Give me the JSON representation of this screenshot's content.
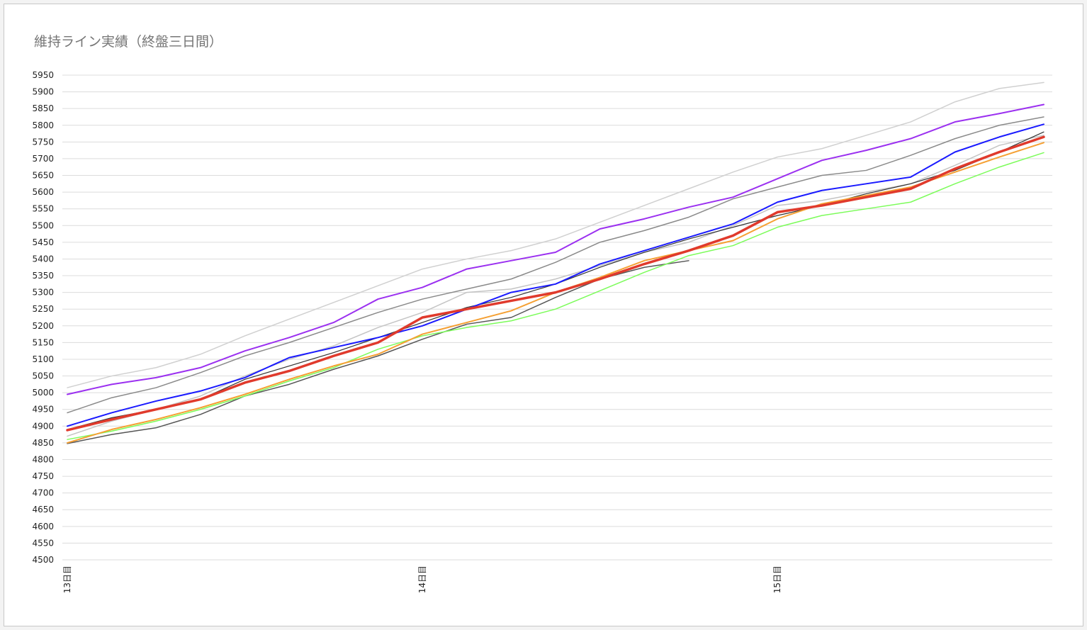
{
  "chart_data": {
    "type": "line",
    "title": "維持ライン実績（終盤三日間）",
    "categories": [
      "13日目",
      null,
      null,
      null,
      null,
      null,
      null,
      null,
      "14日目",
      null,
      null,
      null,
      null,
      null,
      null,
      null,
      "15日目",
      null,
      null,
      null,
      null,
      null,
      null
    ],
    "ylim": [
      4500,
      5950
    ],
    "yticks": [
      4500,
      4550,
      4600,
      4650,
      4700,
      4750,
      4800,
      4850,
      4900,
      4950,
      5000,
      5050,
      5100,
      5150,
      5200,
      5250,
      5300,
      5350,
      5400,
      5450,
      5500,
      5550,
      5600,
      5650,
      5700,
      5750,
      5800,
      5850,
      5900,
      5950
    ],
    "grid": true,
    "series": [
      {
        "color": "#d0d0d0",
        "width": 1.5,
        "values": [
          5015,
          5050,
          5075,
          5115,
          5170,
          5220,
          5270,
          5320,
          5370,
          5400,
          5425,
          5460,
          5510,
          5560,
          5610,
          5660,
          5705,
          5730,
          5770,
          5810,
          5870,
          5910,
          5928
        ]
      },
      {
        "color": "#c4c4c4",
        "width": 1.5,
        "values": [
          4870,
          4915,
          4950,
          4990,
          5050,
          5100,
          5140,
          5195,
          5240,
          5300,
          5310,
          5340,
          5380,
          5420,
          5450,
          5500,
          5560,
          5575,
          5600,
          5625,
          5680,
          5740,
          5770
        ]
      },
      {
        "color": "#8a8a8a",
        "width": 1.5,
        "values": [
          4940,
          4985,
          5015,
          5060,
          5110,
          5150,
          5195,
          5240,
          5280,
          5310,
          5340,
          5390,
          5450,
          5485,
          5525,
          5580,
          5615,
          5650,
          5665,
          5710,
          5760,
          5800,
          5825
        ]
      },
      {
        "color": "#555555",
        "width": 1.5,
        "values": [
          4848,
          4875,
          4895,
          4935,
          4990,
          5025,
          5070,
          5110,
          5160,
          5205,
          5225,
          5285,
          5340,
          5375,
          5395,
          null,
          null,
          null,
          null,
          null,
          null,
          null,
          null
        ]
      },
      {
        "color": "#333333",
        "width": 1.2,
        "values": [
          4890,
          4925,
          4950,
          4980,
          5040,
          5080,
          5120,
          5165,
          5210,
          5255,
          5285,
          5325,
          5375,
          5420,
          5460,
          5495,
          5530,
          5560,
          5595,
          5625,
          5665,
          5720,
          5780
        ]
      },
      {
        "color": "#7cfc5a",
        "width": 1.5,
        "values": [
          4860,
          4885,
          4915,
          4950,
          4990,
          5035,
          5075,
          5130,
          5170,
          5195,
          5215,
          5250,
          5305,
          5360,
          5410,
          5440,
          5495,
          5530,
          5550,
          5570,
          5625,
          5675,
          5718
        ]
      },
      {
        "color": "#f5a033",
        "width": 2,
        "values": [
          4850,
          4890,
          4920,
          4955,
          4995,
          5040,
          5080,
          5115,
          5175,
          5210,
          5245,
          5300,
          5345,
          5395,
          5425,
          5455,
          5520,
          5565,
          5590,
          5615,
          5660,
          5705,
          5748
        ]
      },
      {
        "color": "#1a1aff",
        "width": 2,
        "values": [
          4900,
          4940,
          4975,
          5005,
          5045,
          5105,
          5135,
          5165,
          5200,
          5250,
          5300,
          5325,
          5385,
          5425,
          5465,
          5505,
          5570,
          5605,
          5625,
          5645,
          5720,
          5765,
          5803
        ]
      },
      {
        "color": "#9b30f0",
        "width": 2,
        "values": [
          4995,
          5025,
          5045,
          5075,
          5125,
          5165,
          5210,
          5280,
          5315,
          5370,
          5395,
          5420,
          5490,
          5520,
          5555,
          5585,
          5640,
          5695,
          5725,
          5760,
          5810,
          5835,
          5862
        ]
      },
      {
        "color": "#e03a2c",
        "width": 3.5,
        "values": [
          4888,
          4920,
          4950,
          4980,
          5030,
          5065,
          5110,
          5150,
          5225,
          5250,
          5275,
          5300,
          5340,
          5385,
          5425,
          5470,
          5540,
          5560,
          5585,
          5610,
          5670,
          5720,
          5765
        ]
      }
    ]
  }
}
